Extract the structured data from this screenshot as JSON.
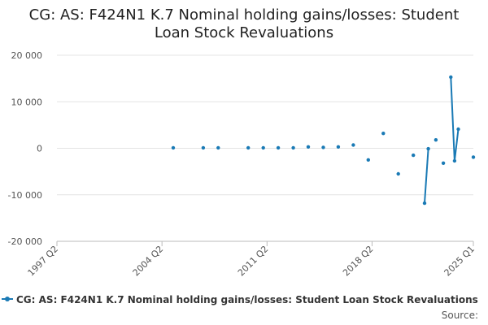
{
  "chart_data": {
    "type": "line",
    "title": "CG: AS: F424N1 K.7 Nominal holding gains/losses: Student Loan Stock Revaluations",
    "xlabel": "",
    "ylabel": "",
    "x_tick_labels": [
      "1997 Q2",
      "2004 Q2",
      "2011 Q2",
      "2018 Q2",
      "2025 Q1"
    ],
    "x_ticks": [
      1997.25,
      2004.25,
      2011.25,
      2018.25,
      2025.0
    ],
    "xlim": [
      1997.25,
      2025.0
    ],
    "y_ticks": [
      -20000,
      -10000,
      0,
      10000,
      20000
    ],
    "y_tick_labels": [
      "-20 000",
      "-10 000",
      "0",
      "10 000",
      "20 000"
    ],
    "ylim": [
      -20000,
      20000
    ],
    "grid": true,
    "legend_position": "bottom",
    "color": "#1a7ab5",
    "series": [
      {
        "name": "CG: AS: F424N1 K.7 Nominal holding gains/losses: Student Loan Stock Revaluations",
        "points": [
          {
            "x": 2005.0,
            "y": 100
          },
          {
            "x": 2007.0,
            "y": 100
          },
          {
            "x": 2008.0,
            "y": 100
          },
          {
            "x": 2010.0,
            "y": 100
          },
          {
            "x": 2011.0,
            "y": 100
          },
          {
            "x": 2012.0,
            "y": 100
          },
          {
            "x": 2013.0,
            "y": 100
          },
          {
            "x": 2014.0,
            "y": 300
          },
          {
            "x": 2015.0,
            "y": 200
          },
          {
            "x": 2016.0,
            "y": 300
          },
          {
            "x": 2017.0,
            "y": 700
          },
          {
            "x": 2018.0,
            "y": -2500
          },
          {
            "x": 2019.0,
            "y": 3200
          },
          {
            "x": 2020.0,
            "y": -5500
          },
          {
            "x": 2021.0,
            "y": -1500
          },
          {
            "x": 2021.75,
            "y": -11800
          },
          {
            "x": 2022.0,
            "y": -100
          },
          {
            "x": 2022.5,
            "y": 1800
          },
          {
            "x": 2023.0,
            "y": -3200
          },
          {
            "x": 2023.5,
            "y": 15300
          },
          {
            "x": 2023.75,
            "y": -2700
          },
          {
            "x": 2024.0,
            "y": 4100
          },
          {
            "x": 2025.0,
            "y": -1900
          }
        ],
        "connected_runs": [
          [
            15,
            16
          ],
          [
            19,
            20,
            21
          ]
        ]
      }
    ],
    "legend_label": "CG: AS: F424N1 K.7 Nominal holding gains/losses: Student Loan Stock Revaluations",
    "source_label": "Source:"
  }
}
